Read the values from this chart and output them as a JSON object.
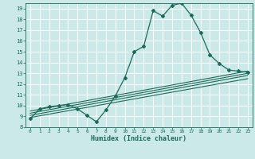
{
  "xlabel": "Humidex (Indice chaleur)",
  "ylabel": "",
  "xlim": [
    -0.5,
    23.5
  ],
  "ylim": [
    8,
    19.5
  ],
  "xticks": [
    0,
    1,
    2,
    3,
    4,
    5,
    6,
    7,
    8,
    9,
    10,
    11,
    12,
    13,
    14,
    15,
    16,
    17,
    18,
    19,
    20,
    21,
    22,
    23
  ],
  "yticks": [
    8,
    9,
    10,
    11,
    12,
    13,
    14,
    15,
    16,
    17,
    18,
    19
  ],
  "bg_color": "#cce9e9",
  "grid_color": "#ffffff",
  "line_color": "#1a6b5a",
  "lines": [
    {
      "x": [
        0,
        1,
        2,
        3,
        4,
        5,
        6,
        7,
        8,
        9,
        10,
        11,
        12,
        13,
        14,
        15,
        16,
        17,
        18,
        19,
        20,
        21,
        22,
        23
      ],
      "y": [
        8.8,
        9.7,
        9.9,
        10.0,
        10.1,
        9.7,
        9.1,
        8.5,
        9.6,
        10.9,
        12.6,
        15.0,
        15.5,
        18.8,
        18.3,
        19.3,
        19.5,
        18.4,
        16.8,
        14.7,
        13.9,
        13.3,
        13.2,
        13.1
      ],
      "marker": true
    },
    {
      "x": [
        0,
        23
      ],
      "y": [
        9.5,
        13.2
      ],
      "marker": false
    },
    {
      "x": [
        0,
        23
      ],
      "y": [
        9.3,
        13.0
      ],
      "marker": false
    },
    {
      "x": [
        0,
        23
      ],
      "y": [
        9.1,
        12.8
      ],
      "marker": false
    },
    {
      "x": [
        0,
        23
      ],
      "y": [
        8.9,
        12.5
      ],
      "marker": false
    }
  ]
}
